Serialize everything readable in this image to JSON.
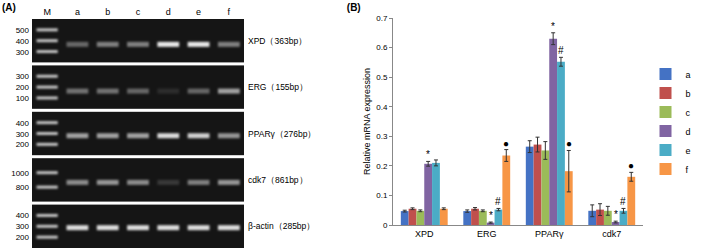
{
  "gel_panel": {
    "label": "(A)",
    "lanes": [
      "M",
      "a",
      "b",
      "c",
      "d",
      "e",
      "f"
    ],
    "gels": [
      {
        "label": "XPD（363bp）",
        "bp": 363,
        "ladder": [
          500,
          400,
          300
        ],
        "intensities": [
          0.35,
          0.45,
          0.45,
          0.9,
          0.9,
          0.45
        ]
      },
      {
        "label": "ERG（155bp）",
        "bp": 155,
        "ladder": [
          300,
          200,
          100
        ],
        "intensities": [
          0.4,
          0.4,
          0.35,
          0.1,
          0.35,
          0.6
        ]
      },
      {
        "label": "PPARγ（276bp）",
        "bp": 276,
        "ladder": [
          400,
          300,
          200
        ],
        "intensities": [
          0.6,
          0.6,
          0.6,
          0.85,
          0.8,
          0.55
        ]
      },
      {
        "label": "cdk7（861bp）",
        "bp": 861,
        "ladder": [
          1000,
          800
        ],
        "intensities": [
          0.5,
          0.55,
          0.5,
          0.15,
          0.45,
          0.55
        ]
      },
      {
        "label": "β-actin（285bp）",
        "bp": 285,
        "ladder": [
          400,
          300,
          200
        ],
        "intensities": [
          0.85,
          0.85,
          0.85,
          0.85,
          0.85,
          0.85
        ]
      }
    ]
  },
  "chart_data": {
    "type": "bar",
    "title": "(B)",
    "y_label": "Relative mRNA expression",
    "categories": [
      "XPD",
      "ERG",
      "PPARγ",
      "cdk7"
    ],
    "series": [
      {
        "name": "a",
        "color": "#4472c4",
        "values": [
          0.047,
          0.047,
          0.265,
          0.048
        ],
        "errors": [
          0.003,
          0.004,
          0.02,
          0.02
        ]
      },
      {
        "name": "b",
        "color": "#c0504d",
        "values": [
          0.055,
          0.055,
          0.272,
          0.052
        ],
        "errors": [
          0.003,
          0.004,
          0.025,
          0.02
        ]
      },
      {
        "name": "c",
        "color": "#9bbb59",
        "values": [
          0.048,
          0.048,
          0.252,
          0.048
        ],
        "errors": [
          0.003,
          0.003,
          0.03,
          0.015
        ]
      },
      {
        "name": "d",
        "color": "#8064a2",
        "values": [
          0.207,
          0.008,
          0.63,
          0.01
        ],
        "errors": [
          0.008,
          0.002,
          0.02,
          0.003
        ]
      },
      {
        "name": "e",
        "color": "#4bacc6",
        "values": [
          0.21,
          0.052,
          0.552,
          0.048
        ],
        "errors": [
          0.01,
          0.004,
          0.015,
          0.008
        ]
      },
      {
        "name": "f",
        "color": "#f79646",
        "values": [
          0.055,
          0.235,
          0.182,
          0.163
        ],
        "errors": [
          0.003,
          0.02,
          0.07,
          0.015
        ]
      }
    ],
    "annotations": [
      {
        "category": "XPD",
        "series": "d",
        "text": "*"
      },
      {
        "category": "ERG",
        "series": "d",
        "text": "*"
      },
      {
        "category": "PPARγ",
        "series": "d",
        "text": "*"
      },
      {
        "category": "cdk7",
        "series": "d",
        "text": "*"
      },
      {
        "category": "ERG",
        "series": "e",
        "text": "#"
      },
      {
        "category": "PPARγ",
        "series": "e",
        "text": "#"
      },
      {
        "category": "cdk7",
        "series": "e",
        "text": "#"
      },
      {
        "category": "ERG",
        "series": "f",
        "text": "●"
      },
      {
        "category": "PPARγ",
        "series": "f",
        "text": "●"
      },
      {
        "category": "cdk7",
        "series": "f",
        "text": "●"
      }
    ],
    "ylim": [
      0,
      0.7
    ],
    "yticks": [
      0,
      0.1,
      0.2,
      0.3,
      0.4,
      0.5,
      0.6,
      0.7
    ],
    "grid": false,
    "legend": "right"
  }
}
